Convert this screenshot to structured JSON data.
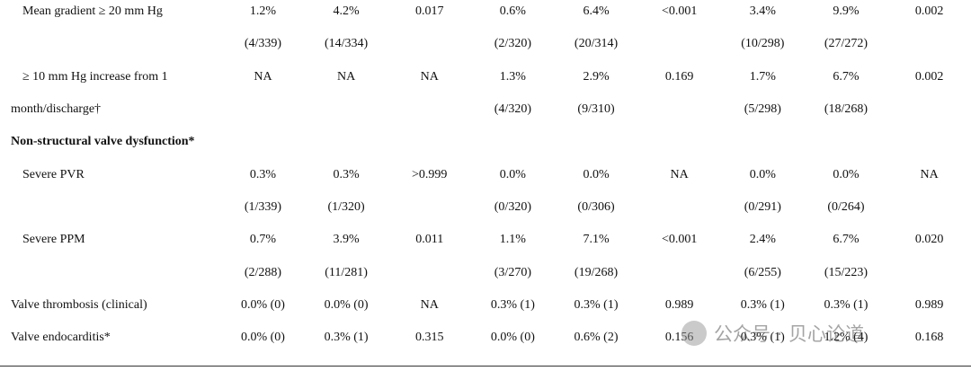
{
  "table": {
    "rows": [
      [
        "Mean gradient ≥ 20 mm Hg",
        "1.2%",
        "4.2%",
        "0.017",
        "0.6%",
        "6.4%",
        "<0.001",
        "3.4%",
        "9.9%",
        "0.002"
      ],
      [
        null,
        "(4/339)",
        "(14/334)",
        null,
        "(2/320)",
        "(20/314)",
        null,
        "(10/298)",
        "(27/272)",
        null
      ],
      [
        "≥ 10 mm Hg increase from 1",
        "NA",
        "NA",
        "NA",
        "1.3%",
        "2.9%",
        "0.169",
        "1.7%",
        "6.7%",
        "0.002"
      ],
      [
        "month/discharge†",
        null,
        null,
        null,
        "(4/320)",
        "(9/310)",
        null,
        "(5/298)",
        "(18/268)",
        null
      ],
      [
        "Non-structural valve dysfunction*",
        null,
        null,
        null,
        null,
        null,
        null,
        null,
        null,
        null
      ],
      [
        "Severe PVR",
        "0.3%",
        "0.3%",
        ">0.999",
        "0.0%",
        "0.0%",
        "NA",
        "0.0%",
        "0.0%",
        "NA"
      ],
      [
        null,
        "(1/339)",
        "(1/320)",
        null,
        "(0/320)",
        "(0/306)",
        null,
        "(0/291)",
        "(0/264)",
        null
      ],
      [
        "Severe PPM",
        "0.7%",
        "3.9%",
        "0.011",
        "1.1%",
        "7.1%",
        "<0.001",
        "2.4%",
        "6.7%",
        "0.020"
      ],
      [
        null,
        "(2/288)",
        "(11/281)",
        null,
        "(3/270)",
        "(19/268)",
        null,
        "(6/255)",
        "(15/223)",
        null
      ],
      [
        "Valve thrombosis (clinical)",
        "0.0% (0)",
        "0.0% (0)",
        "NA",
        "0.3% (1)",
        "0.3% (1)",
        "0.989",
        "0.3% (1)",
        "0.3% (1)",
        "0.989"
      ],
      [
        "Valve endocarditis*",
        "0.0% (0)",
        "0.3% (1)",
        "0.315",
        "0.0% (0)",
        "0.6% (2)",
        "0.156",
        "0.3% (1)",
        "1.2% (4)",
        "0.168"
      ]
    ]
  },
  "watermark": "公众号 · 贝心论道"
}
